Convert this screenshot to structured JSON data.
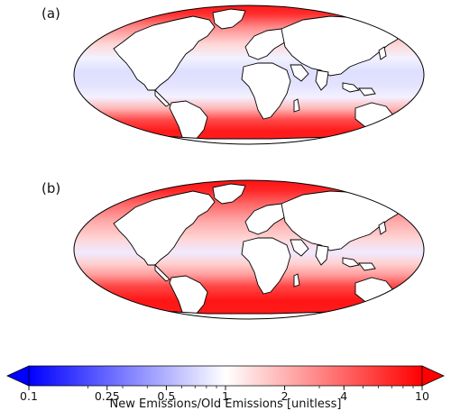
{
  "panels": [
    {
      "label": "(a)"
    },
    {
      "label": "(b)"
    }
  ],
  "colorbar": {
    "label": "New Emissions/Old Emissions [unitless]",
    "ticks": [
      "0.1",
      "0.25",
      "0.5",
      "1",
      "2",
      "4",
      "10"
    ],
    "tick_values": [
      0.1,
      0.25,
      0.5,
      1,
      2,
      4,
      10
    ],
    "scale": "log",
    "range": [
      0.1,
      10
    ],
    "extend": "both",
    "colors": {
      "low": "#0000ff",
      "mid": "#ffffff",
      "high": "#ff0000"
    }
  },
  "map": {
    "projection": "Robinson",
    "land_color": "#ffffff",
    "coast_color": "#000000"
  }
}
